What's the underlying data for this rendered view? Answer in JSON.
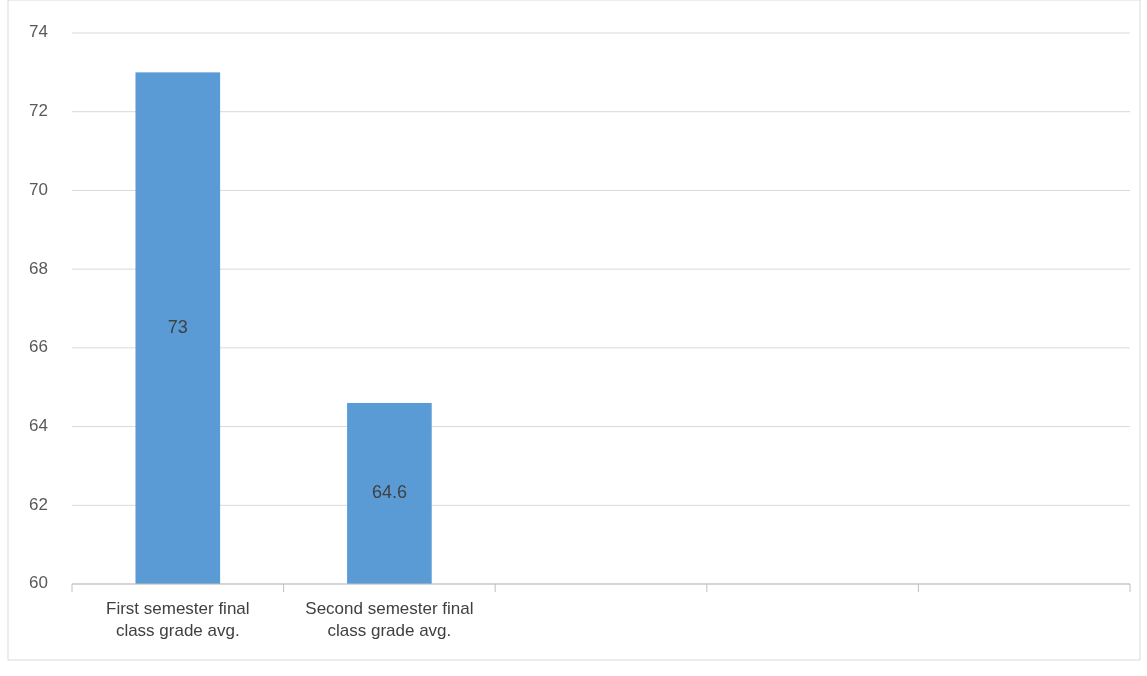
{
  "chart_data": {
    "type": "bar",
    "categories": [
      "First semester final class grade avg.",
      "Second semester final class grade avg.",
      null,
      null,
      null
    ],
    "values": [
      73,
      64.6,
      null,
      null,
      null
    ],
    "color": "#5b9bd5",
    "ylim": [
      60,
      74
    ],
    "yticks": [
      60,
      62,
      64,
      66,
      68,
      70,
      72,
      74
    ],
    "grid": "y",
    "data_labels": true
  }
}
